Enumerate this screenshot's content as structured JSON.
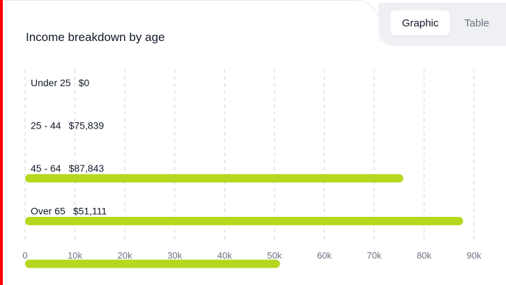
{
  "toggle": {
    "graphic_label": "Graphic",
    "table_label": "Table",
    "selected": "Graphic"
  },
  "colors": {
    "bar": "#b5d81e",
    "grid": "#cfd3da",
    "accent_left": "#ff0000"
  },
  "chart_data": {
    "type": "bar",
    "orientation": "horizontal",
    "title": "Income breakdown by age",
    "categories": [
      "Under 25",
      "25 - 44",
      "45 - 64",
      "Over 65"
    ],
    "values": [
      0,
      75839,
      87843,
      51111
    ],
    "value_labels": [
      "$0",
      "$75,839",
      "$87,843",
      "$51,111"
    ],
    "xlim": [
      0,
      90000
    ],
    "xticks": [
      0,
      10000,
      20000,
      30000,
      40000,
      50000,
      60000,
      70000,
      80000,
      90000
    ],
    "xtick_labels": [
      "0",
      "10k",
      "20k",
      "30k",
      "40k",
      "50k",
      "60k",
      "70k",
      "80k",
      "90k"
    ],
    "grid": true,
    "grid_style": "dashed-vertical",
    "legend": "none"
  }
}
